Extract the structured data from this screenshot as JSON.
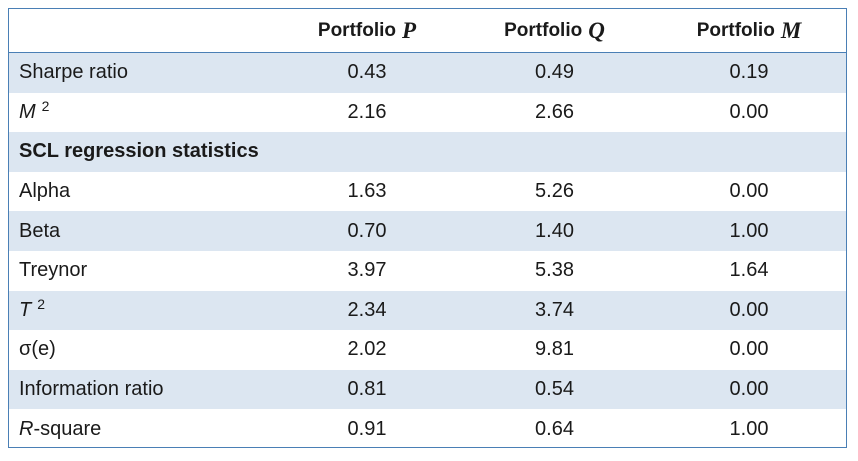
{
  "header": {
    "col1": {
      "label": "Portfolio",
      "symbol": "P"
    },
    "col2": {
      "label": "Portfolio",
      "symbol": "Q"
    },
    "col3": {
      "label": "Portfolio",
      "symbol": "M"
    }
  },
  "rows": [
    {
      "label": "Sharpe ratio",
      "p": "0.43",
      "q": "0.49",
      "m": "0.19"
    },
    {
      "label_main": "M",
      "label_sup": "2",
      "p": "2.16",
      "q": "2.66",
      "m": "0.00"
    },
    {
      "label": "SCL regression statistics"
    },
    {
      "label": "Alpha",
      "p": "1.63",
      "q": "5.26",
      "m": "0.00"
    },
    {
      "label": "Beta",
      "p": "0.70",
      "q": "1.40",
      "m": "1.00"
    },
    {
      "label": "Treynor",
      "p": "3.97",
      "q": "5.38",
      "m": "1.64"
    },
    {
      "label_main": "T",
      "label_sup": "2",
      "p": "2.34",
      "q": "3.74",
      "m": "0.00"
    },
    {
      "label": "σ(e)",
      "p": "2.02",
      "q": "9.81",
      "m": "0.00"
    },
    {
      "label": "Information ratio",
      "p": "0.81",
      "q": "0.54",
      "m": "0.00"
    },
    {
      "label_main": "R",
      "label_rest": "-square",
      "p": "0.91",
      "q": "0.64",
      "m": "1.00"
    }
  ],
  "colors": {
    "border": "#4a7fb5",
    "stripe": "#dce6f1",
    "text": "#1a1a1a"
  }
}
